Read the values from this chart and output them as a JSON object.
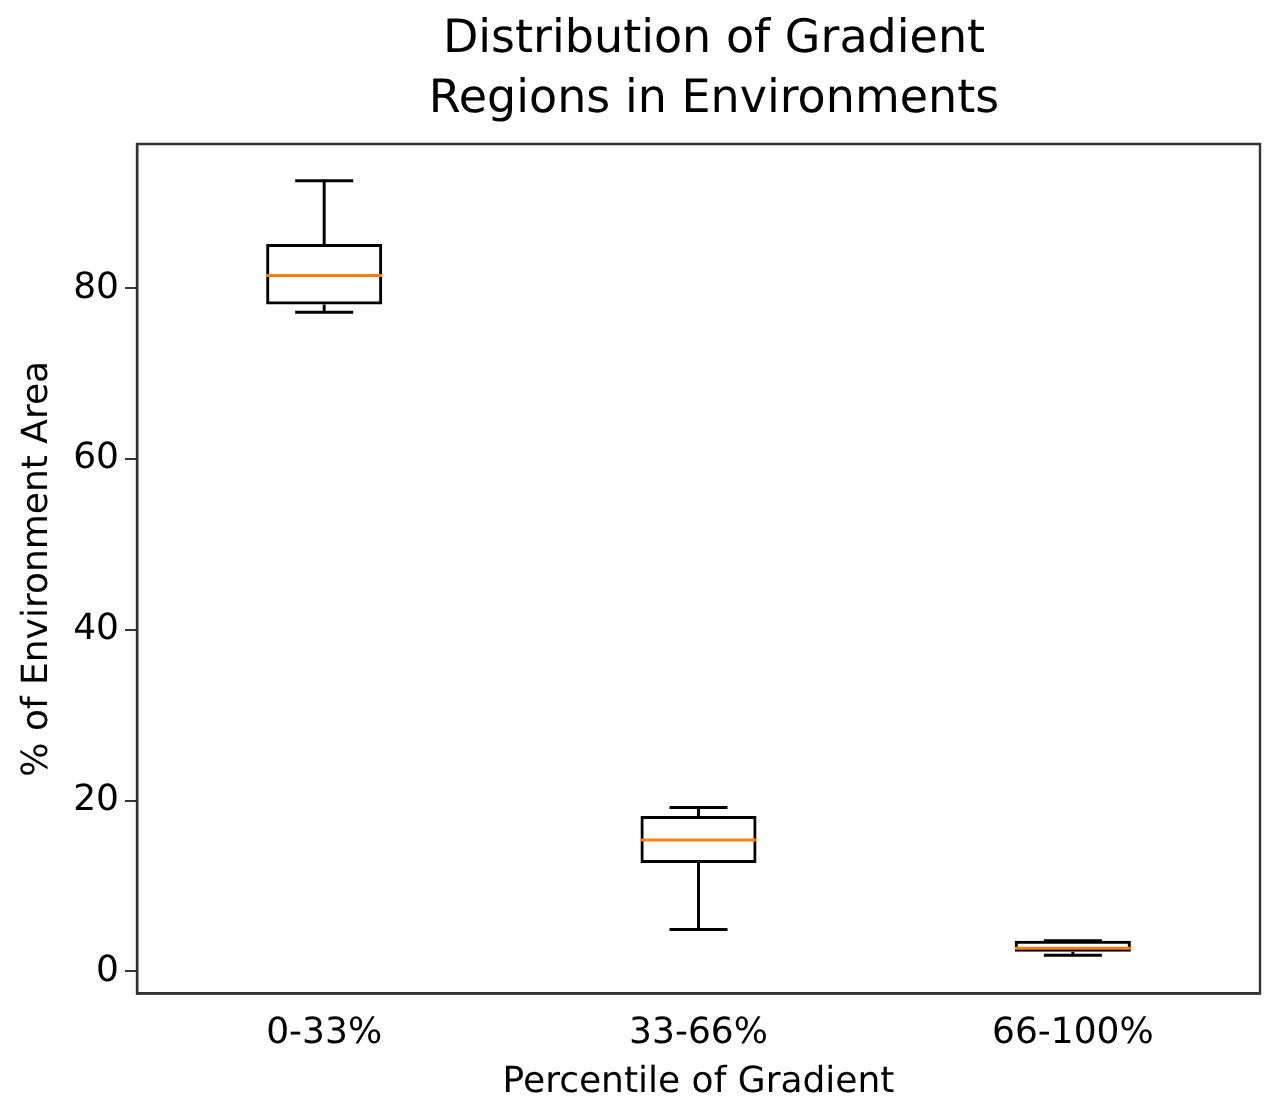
{
  "chart_data": {
    "type": "box",
    "title": "Distribution of Gradient Regions in Environments",
    "xlabel": "Percentile of Gradient",
    "ylabel": "% of Environment Area",
    "categories": [
      "0-33%",
      "33-66%",
      "66-100%"
    ],
    "boxes": [
      {
        "low": 77.2,
        "q1": 78.1,
        "median": 81.5,
        "q3": 85.2,
        "high": 92.6
      },
      {
        "low": 4.9,
        "q1": 12.7,
        "median": 15.4,
        "q3": 18.2,
        "high": 19.2
      },
      {
        "low": 1.9,
        "q1": 2.3,
        "median": 2.7,
        "q3": 3.6,
        "high": 3.6
      }
    ],
    "color": "#000000",
    "ylim": [
      -2.6,
      96.9
    ],
    "yticks": [
      0,
      20,
      40,
      60,
      80
    ],
    "grid": false,
    "legend": false
  }
}
